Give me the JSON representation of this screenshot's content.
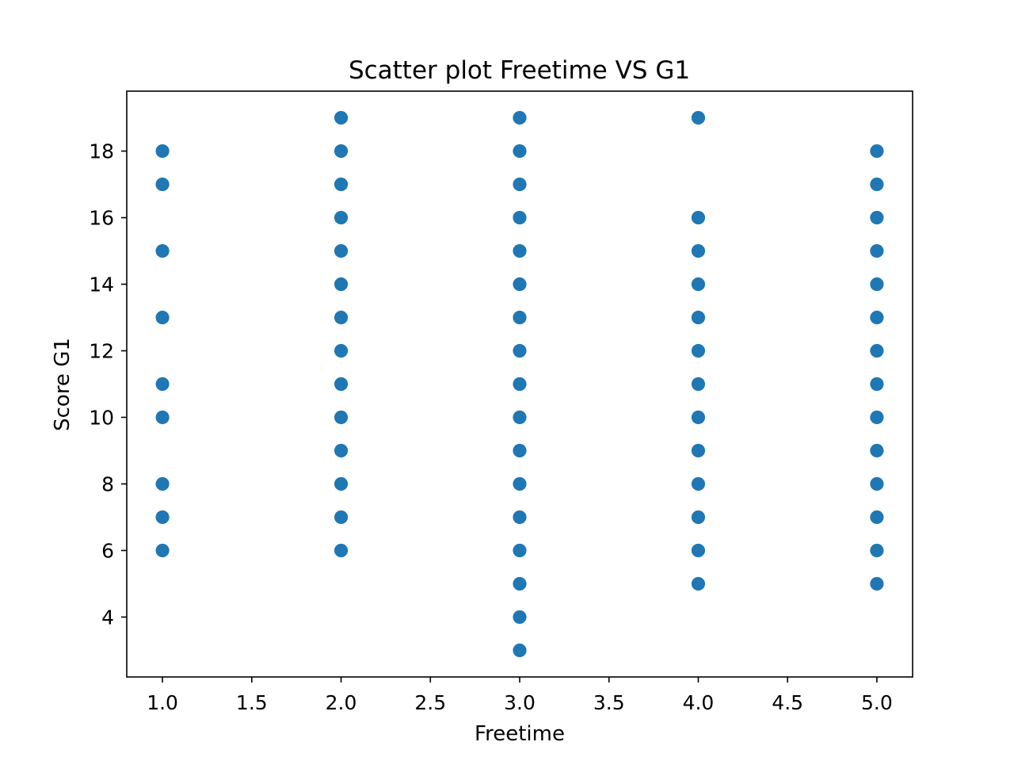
{
  "chart_data": {
    "type": "scatter",
    "title": "Scatter plot Freetime VS G1",
    "xlabel": "Freetime",
    "ylabel": "Score G1",
    "xlim": [
      0.8,
      5.2
    ],
    "ylim": [
      2.2,
      19.8
    ],
    "xticks": [
      1.0,
      1.5,
      2.0,
      2.5,
      3.0,
      3.5,
      4.0,
      4.5,
      5.0
    ],
    "xtick_labels": [
      "1.0",
      "1.5",
      "2.0",
      "2.5",
      "3.0",
      "3.5",
      "4.0",
      "4.5",
      "5.0"
    ],
    "yticks": [
      4,
      6,
      8,
      10,
      12,
      14,
      16,
      18
    ],
    "ytick_labels": [
      "4",
      "6",
      "8",
      "10",
      "12",
      "14",
      "16",
      "18"
    ],
    "grid": false,
    "marker_color": "#1f77b4",
    "points": [
      {
        "x": 1,
        "y": 18
      },
      {
        "x": 1,
        "y": 17
      },
      {
        "x": 1,
        "y": 15
      },
      {
        "x": 1,
        "y": 13
      },
      {
        "x": 1,
        "y": 11
      },
      {
        "x": 1,
        "y": 10
      },
      {
        "x": 1,
        "y": 8
      },
      {
        "x": 1,
        "y": 7
      },
      {
        "x": 1,
        "y": 6
      },
      {
        "x": 2,
        "y": 19
      },
      {
        "x": 2,
        "y": 18
      },
      {
        "x": 2,
        "y": 17
      },
      {
        "x": 2,
        "y": 16
      },
      {
        "x": 2,
        "y": 15
      },
      {
        "x": 2,
        "y": 14
      },
      {
        "x": 2,
        "y": 13
      },
      {
        "x": 2,
        "y": 12
      },
      {
        "x": 2,
        "y": 11
      },
      {
        "x": 2,
        "y": 10
      },
      {
        "x": 2,
        "y": 9
      },
      {
        "x": 2,
        "y": 8
      },
      {
        "x": 2,
        "y": 7
      },
      {
        "x": 2,
        "y": 6
      },
      {
        "x": 3,
        "y": 19
      },
      {
        "x": 3,
        "y": 18
      },
      {
        "x": 3,
        "y": 17
      },
      {
        "x": 3,
        "y": 16
      },
      {
        "x": 3,
        "y": 15
      },
      {
        "x": 3,
        "y": 14
      },
      {
        "x": 3,
        "y": 13
      },
      {
        "x": 3,
        "y": 12
      },
      {
        "x": 3,
        "y": 11
      },
      {
        "x": 3,
        "y": 10
      },
      {
        "x": 3,
        "y": 9
      },
      {
        "x": 3,
        "y": 8
      },
      {
        "x": 3,
        "y": 7
      },
      {
        "x": 3,
        "y": 6
      },
      {
        "x": 3,
        "y": 5
      },
      {
        "x": 3,
        "y": 4
      },
      {
        "x": 3,
        "y": 3
      },
      {
        "x": 4,
        "y": 19
      },
      {
        "x": 4,
        "y": 16
      },
      {
        "x": 4,
        "y": 15
      },
      {
        "x": 4,
        "y": 14
      },
      {
        "x": 4,
        "y": 13
      },
      {
        "x": 4,
        "y": 12
      },
      {
        "x": 4,
        "y": 11
      },
      {
        "x": 4,
        "y": 10
      },
      {
        "x": 4,
        "y": 9
      },
      {
        "x": 4,
        "y": 8
      },
      {
        "x": 4,
        "y": 7
      },
      {
        "x": 4,
        "y": 6
      },
      {
        "x": 4,
        "y": 5
      },
      {
        "x": 5,
        "y": 18
      },
      {
        "x": 5,
        "y": 17
      },
      {
        "x": 5,
        "y": 16
      },
      {
        "x": 5,
        "y": 15
      },
      {
        "x": 5,
        "y": 14
      },
      {
        "x": 5,
        "y": 13
      },
      {
        "x": 5,
        "y": 12
      },
      {
        "x": 5,
        "y": 11
      },
      {
        "x": 5,
        "y": 10
      },
      {
        "x": 5,
        "y": 9
      },
      {
        "x": 5,
        "y": 8
      },
      {
        "x": 5,
        "y": 7
      },
      {
        "x": 5,
        "y": 6
      },
      {
        "x": 5,
        "y": 5
      }
    ]
  }
}
